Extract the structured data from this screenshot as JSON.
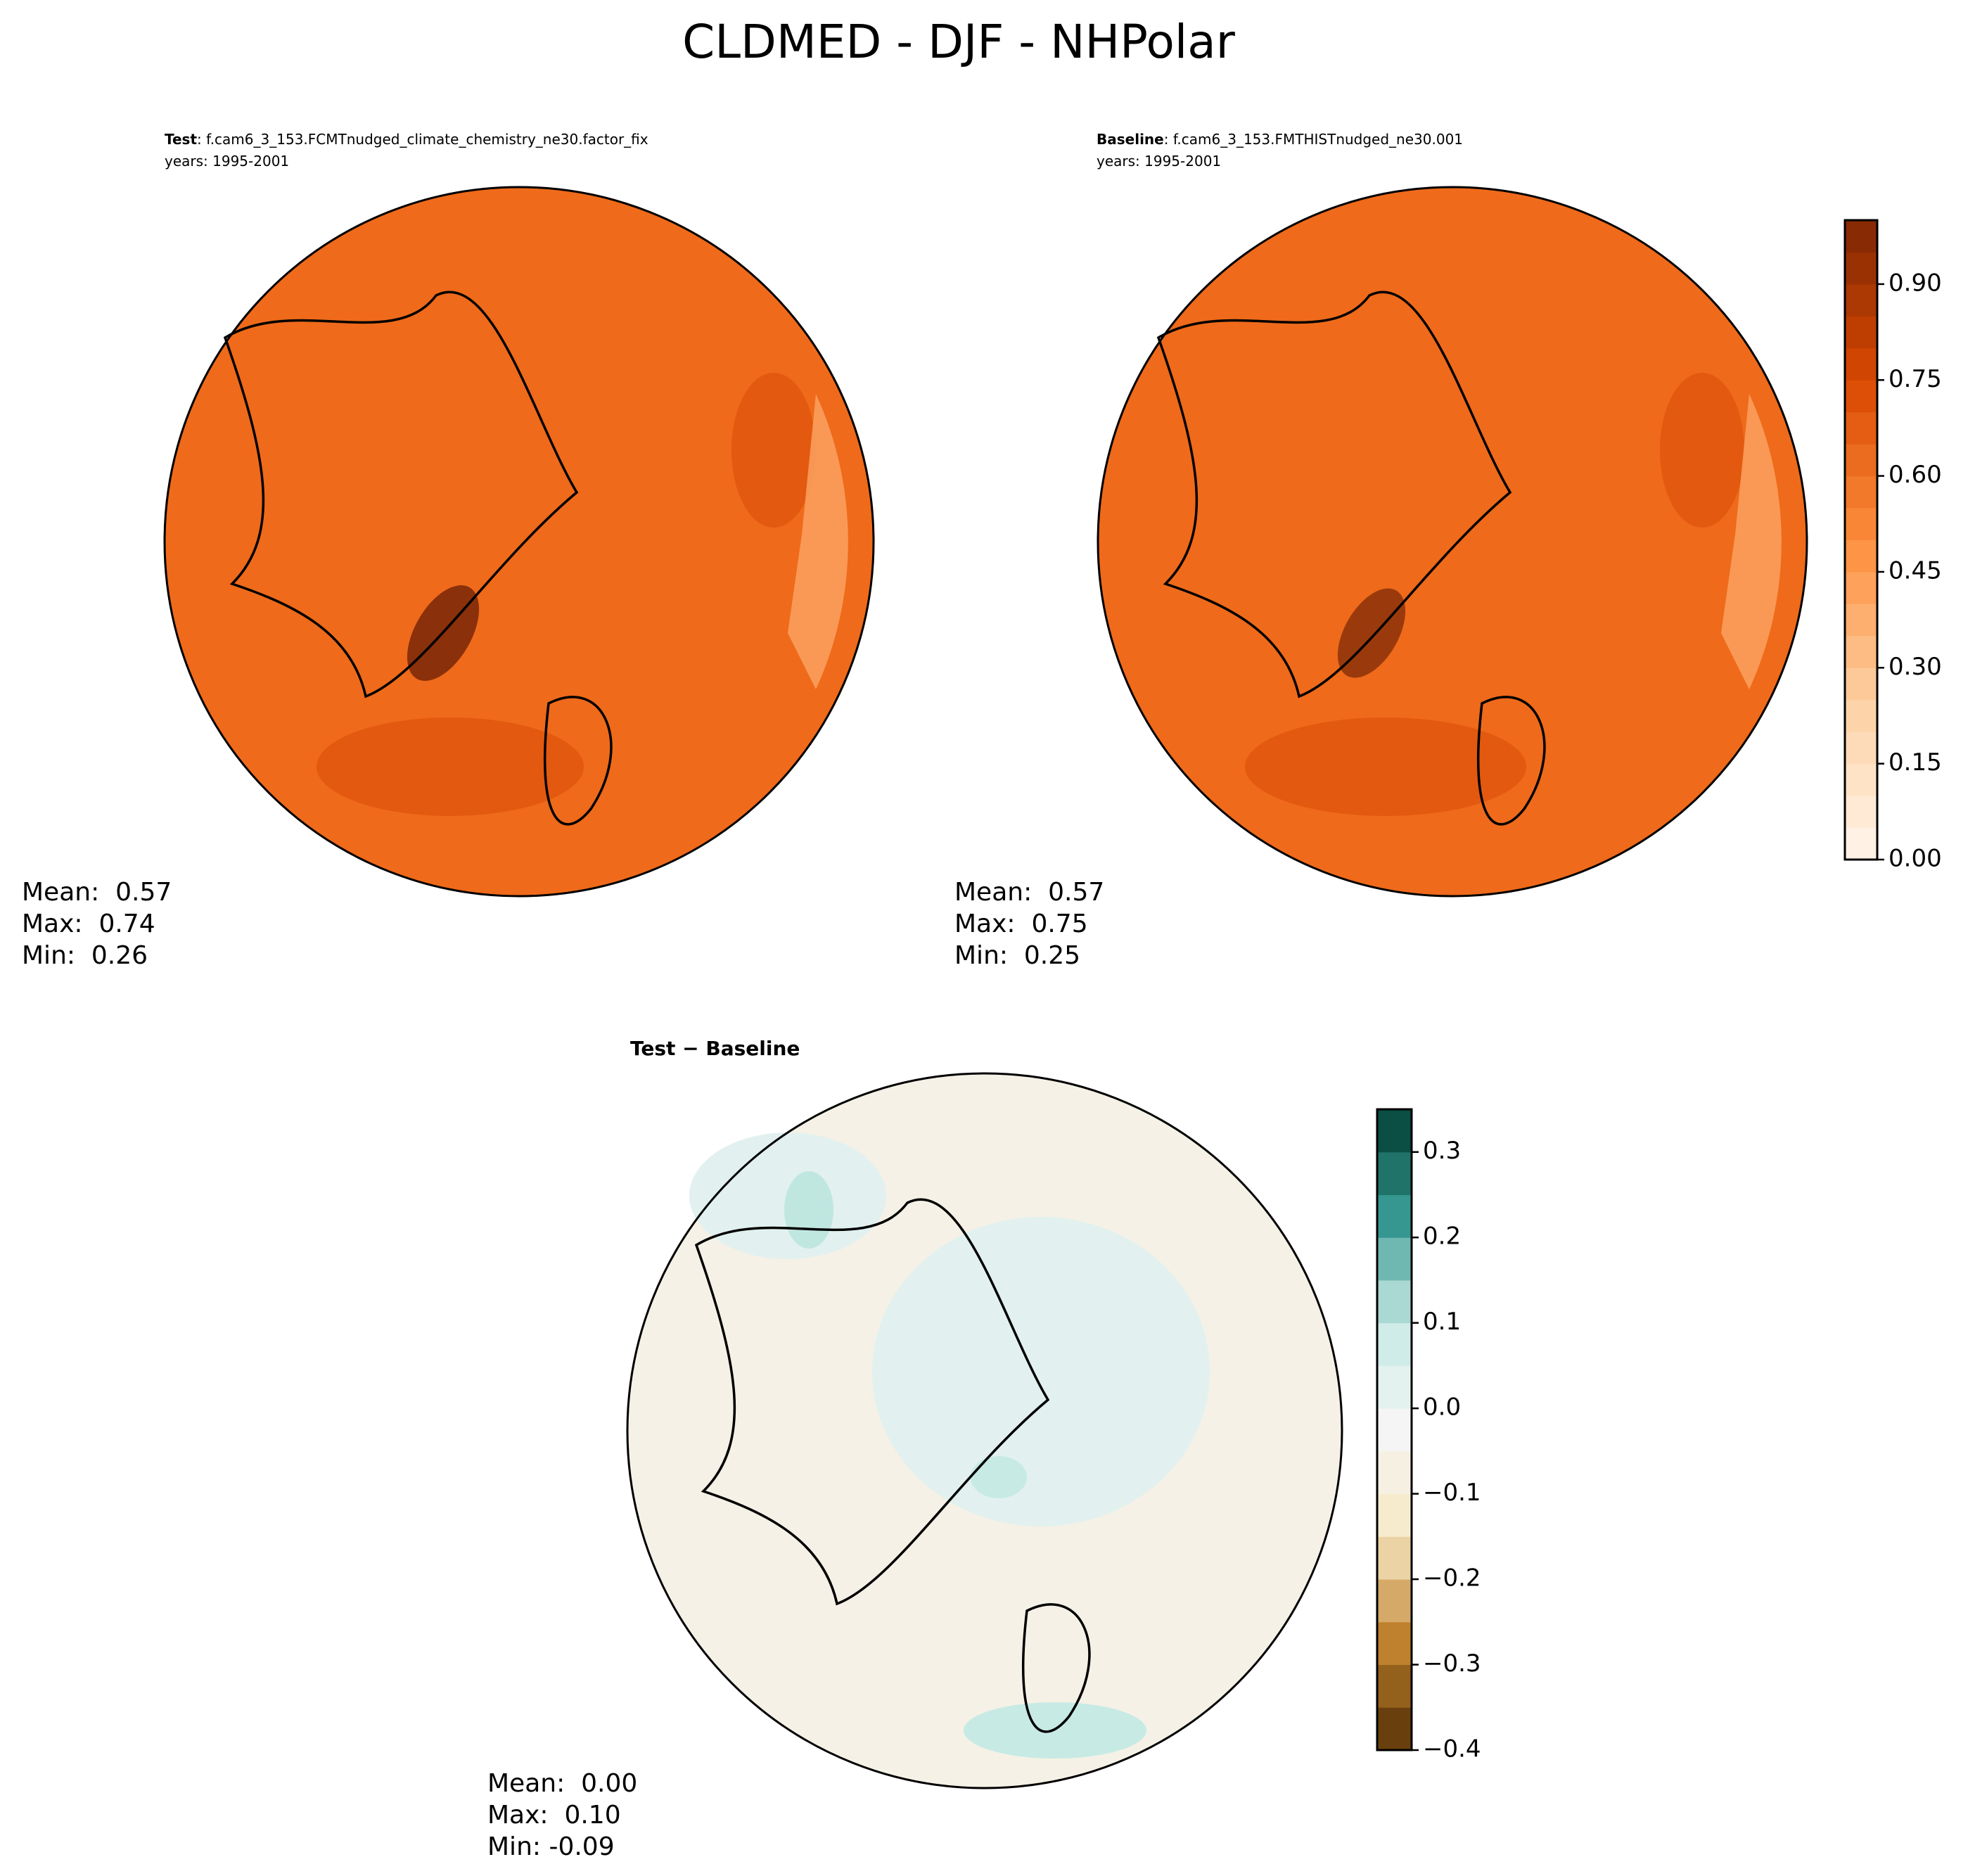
{
  "title": "CLDMED - DJF - NHPolar",
  "panels": [
    {
      "name": "Test",
      "case": ": f.cam6_3_153.FCMTnudged_climate_chemistry_ne30.factor_fix",
      "years": "years: 1995-2001",
      "stats": [
        "Mean:  0.57",
        "Max:  0.74",
        "Min:  0.26"
      ]
    },
    {
      "name": "Baseline",
      "case": ": f.cam6_3_153.FMTHISTnudged_ne30.001",
      "years": "years: 1995-2001",
      "stats": [
        "Mean:  0.57",
        "Max:  0.75",
        "Min:  0.25"
      ]
    },
    {
      "name": "Test − Baseline",
      "stats": [
        "Mean:  0.00",
        "Max:  0.10",
        "Min: -0.09"
      ]
    }
  ],
  "colorbars": [
    {
      "lim": [
        0,
        1
      ],
      "bands": 20,
      "colors": [
        "#fff5eb",
        "#fdd0a2",
        "#fd8d3c",
        "#d94801",
        "#7f2704"
      ],
      "ticks": [
        {
          "value": 0,
          "label": "0.00"
        },
        {
          "value": 0.15,
          "label": "0.15"
        },
        {
          "value": 0.3,
          "label": "0.30"
        },
        {
          "value": 0.45,
          "label": "0.45"
        },
        {
          "value": 0.6,
          "label": "0.60"
        },
        {
          "value": 0.75,
          "label": "0.75"
        },
        {
          "value": 0.9,
          "label": "0.90"
        }
      ]
    },
    {
      "lim": [
        -0.4,
        0.35
      ],
      "bands": 15,
      "colors": [
        "#543005",
        "#bf812d",
        "#f6e8c3",
        "#f5f5f5",
        "#c7eae5",
        "#35978f",
        "#003c30"
      ],
      "ticks": [
        {
          "value": -0.4,
          "label": "−0.4"
        },
        {
          "value": -0.3,
          "label": "−0.3"
        },
        {
          "value": -0.2,
          "label": "−0.2"
        },
        {
          "value": -0.1,
          "label": "−0.1"
        },
        {
          "value": 0,
          "label": "0.0"
        },
        0.1,
        0.2,
        0.3
      ]
    }
  ]
}
